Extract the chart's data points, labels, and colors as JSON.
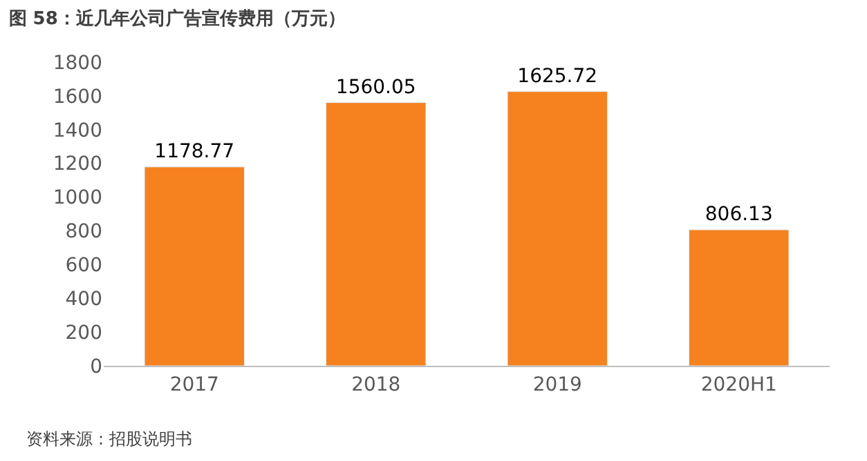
{
  "chart_data": {
    "type": "bar",
    "title": "图 58：近几年公司广告宣传费用（万元）",
    "categories": [
      "2017",
      "2018",
      "2019",
      "2020H1"
    ],
    "values": [
      1178.77,
      1560.05,
      1625.72,
      806.13
    ],
    "color": "#f5821f",
    "data_labels": true,
    "ylim": [
      0,
      1800
    ],
    "yticks": [
      0,
      200,
      400,
      600,
      800,
      1000,
      1200,
      1400,
      1600,
      1800
    ],
    "annotations": [
      "资料来源：招股说明书"
    ]
  }
}
